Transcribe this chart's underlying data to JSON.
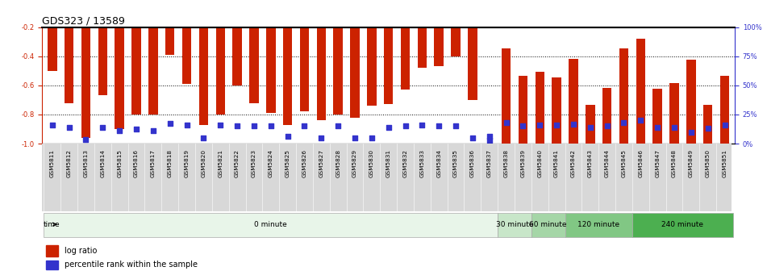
{
  "title": "GDS323 / 13589",
  "samples": [
    "GSM5811",
    "GSM5812",
    "GSM5813",
    "GSM5814",
    "GSM5815",
    "GSM5816",
    "GSM5817",
    "GSM5818",
    "GSM5819",
    "GSM5820",
    "GSM5821",
    "GSM5822",
    "GSM5823",
    "GSM5824",
    "GSM5825",
    "GSM5826",
    "GSM5827",
    "GSM5828",
    "GSM5829",
    "GSM5830",
    "GSM5831",
    "GSM5832",
    "GSM5833",
    "GSM5834",
    "GSM5835",
    "GSM5836",
    "GSM5837",
    "GSM5838",
    "GSM5839",
    "GSM5840",
    "GSM5841",
    "GSM5842",
    "GSM5843",
    "GSM5844",
    "GSM5845",
    "GSM5846",
    "GSM5847",
    "GSM5848",
    "GSM5849",
    "GSM5850",
    "GSM5851"
  ],
  "log_ratio": [
    -0.5,
    -0.72,
    -0.96,
    -0.67,
    -0.9,
    -0.8,
    -0.8,
    -0.39,
    -0.59,
    -0.87,
    -0.8,
    -0.6,
    -0.72,
    -0.79,
    -0.87,
    -0.78,
    -0.84,
    -0.8,
    -0.82,
    -0.74,
    -0.73,
    -0.63,
    -0.48,
    -0.47,
    -0.4,
    -0.7,
    -0.97,
    0.0,
    0.0,
    0.0,
    0.0,
    0.0,
    0.0,
    0.0,
    0.0,
    0.0,
    0.0,
    0.0,
    0.0,
    0.0,
    0.0
  ],
  "right_values": [
    0,
    0,
    0,
    0,
    0,
    0,
    0,
    0,
    0,
    0,
    0,
    0,
    0,
    0,
    0,
    0,
    0,
    0,
    0,
    0,
    0,
    0,
    0,
    0,
    0,
    0,
    0,
    82,
    58,
    62,
    57,
    73,
    33,
    48,
    82,
    90,
    47,
    52,
    72,
    33,
    58
  ],
  "left_percentile_pos": [
    -0.87,
    -0.89,
    -0.97,
    -0.89,
    -0.91,
    -0.9,
    -0.91,
    -0.86,
    -0.87,
    -0.96,
    -0.87,
    -0.88,
    -0.88,
    -0.88,
    -0.95,
    -0.88,
    -0.96,
    -0.88,
    -0.96,
    -0.96,
    -0.89,
    -0.88,
    -0.87,
    -0.88,
    -0.88,
    -0.96,
    -0.95
  ],
  "right_percentile_pos": [
    0,
    0,
    0,
    0,
    0,
    0,
    0,
    0,
    0,
    0,
    0,
    0,
    0,
    0,
    0,
    0,
    0,
    0,
    0,
    0,
    0,
    0,
    0,
    0,
    0,
    0,
    0,
    18,
    15,
    16,
    16,
    17,
    14,
    15,
    18,
    20,
    14,
    14,
    10,
    13,
    16
  ],
  "gsm5837_blue_only": true,
  "time_groups": [
    {
      "label": "0 minute",
      "start": 0,
      "end": 27,
      "color": "#e8f5e9"
    },
    {
      "label": "30 minute",
      "start": 27,
      "end": 29,
      "color": "#c8e6c9"
    },
    {
      "label": "60 minute",
      "start": 29,
      "end": 31,
      "color": "#a5d6a7"
    },
    {
      "label": "120 minute",
      "start": 31,
      "end": 35,
      "color": "#81c784"
    },
    {
      "label": "240 minute",
      "start": 35,
      "end": 41,
      "color": "#4caf50"
    }
  ],
  "bar_color": "#cc2200",
  "percentile_color": "#3333cc",
  "left_ylim": [
    -1.0,
    -0.2
  ],
  "right_ylim": [
    0,
    100
  ],
  "left_yticks": [
    -1.0,
    -0.8,
    -0.6,
    -0.4,
    -0.2
  ],
  "right_yticks": [
    0,
    25,
    50,
    75,
    100
  ],
  "right_yticklabels": [
    "0%",
    "25%",
    "50%",
    "75%",
    "100%"
  ],
  "bg_color": "#ffffff",
  "axis_color_left": "#cc2200",
  "axis_color_right": "#3333cc",
  "title_fontsize": 9,
  "tick_fontsize": 6,
  "bar_width": 0.55,
  "split_index": 27
}
